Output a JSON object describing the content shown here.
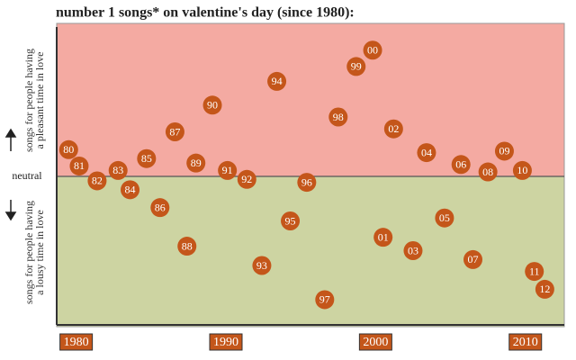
{
  "chart_data": {
    "type": "scatter",
    "title": "number 1 songs* on valentine's day (since 1980):",
    "upper_label": [
      "songs for people having",
      "a pleasant time in love"
    ],
    "lower_label": [
      "songs for people having",
      "a lousy time in love"
    ],
    "upper_color": "#f4aaa2",
    "lower_color": "#cdd4a2",
    "point_color": "#c4561a",
    "labels": [
      "80",
      "81",
      "82",
      "83",
      "84",
      "85",
      "86",
      "87",
      "88",
      "89",
      "90",
      "91",
      "92",
      "93",
      "94",
      "95",
      "96",
      "97",
      "98",
      "99",
      "00",
      "01",
      "02",
      "03",
      "04",
      "05",
      "06",
      "07",
      "08",
      "09",
      "10",
      "11",
      "12"
    ],
    "x": [
      1979.5,
      1980.2,
      1981.4,
      1982.8,
      1983.6,
      1984.7,
      1985.6,
      1986.6,
      1987.4,
      1988.0,
      1989.1,
      1990.1,
      1991.4,
      1992.4,
      1993.4,
      1994.3,
      1995.4,
      1996.6,
      1997.5,
      1998.7,
      1999.8,
      2000.5,
      2001.2,
      2002.5,
      2003.4,
      2004.6,
      2005.7,
      2006.5,
      2007.5,
      2008.6,
      2009.8,
      2010.6,
      2011.3
    ],
    "values": [
      1.8,
      0.7,
      -0.3,
      0.4,
      -0.9,
      1.2,
      -2.1,
      3.0,
      -4.7,
      0.9,
      4.8,
      0.4,
      -0.2,
      -6.0,
      6.4,
      -3.0,
      -0.4,
      -8.3,
      4.0,
      7.4,
      8.5,
      -4.1,
      3.2,
      -5.0,
      1.6,
      -2.8,
      0.8,
      -5.6,
      0.3,
      1.7,
      0.4,
      -6.4,
      -7.6
    ],
    "xlim": [
      1978.7,
      2012.6
    ],
    "ylim": [
      -10,
      10
    ],
    "xticks": [
      1980,
      1990,
      2000,
      2010
    ],
    "yticks": [
      {
        "value": 0,
        "label": "neutral"
      }
    ]
  }
}
